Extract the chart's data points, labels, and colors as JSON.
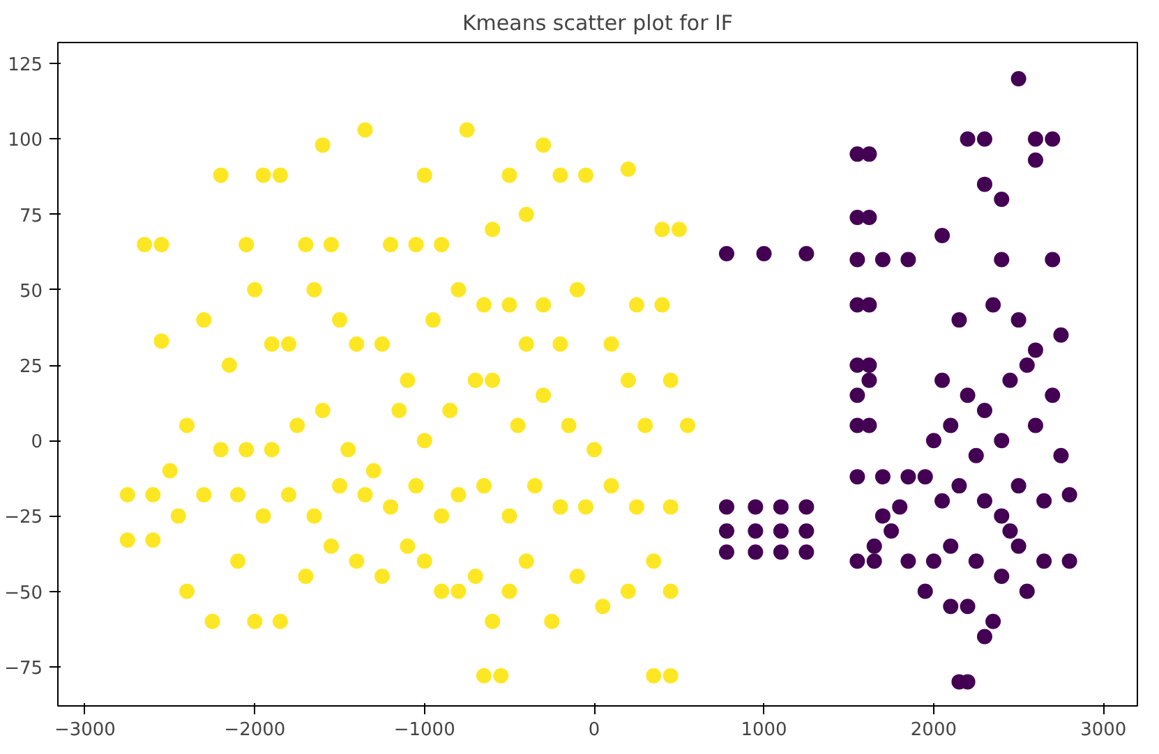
{
  "chart_data": {
    "type": "scatter",
    "title": "Kmeans scatter plot for IF",
    "marker": "circle",
    "grid": false,
    "xlim": [
      -3160,
      3200
    ],
    "ylim": [
      -88,
      132
    ],
    "xticks": [
      -3000,
      -2000,
      -1000,
      0,
      1000,
      2000,
      3000
    ],
    "yticks": [
      -75,
      -50,
      -25,
      0,
      25,
      50,
      75,
      100,
      125
    ],
    "series": [
      {
        "color": "#fde725",
        "x": [
          -2650,
          -2550,
          -2200,
          -1950,
          -1850,
          -2050,
          -1700,
          -1550,
          -1350,
          -1600,
          -1200,
          -1050,
          -900,
          -1000,
          -750,
          -500,
          -400,
          -600,
          -300,
          -200,
          -50,
          200,
          400,
          500,
          -2550,
          -2300,
          -2150,
          -2000,
          -1900,
          -1800,
          -1650,
          -1500,
          -1400,
          -1250,
          -1100,
          -950,
          -800,
          -650,
          -500,
          -400,
          -300,
          -200,
          -100,
          100,
          250,
          400,
          -2400,
          -2500,
          -2200,
          -2050,
          -1900,
          -1750,
          -1600,
          -1450,
          -1300,
          -1150,
          -1000,
          -850,
          -700,
          -600,
          -450,
          -300,
          -150,
          0,
          200,
          300,
          450,
          550,
          -2750,
          -2600,
          -2450,
          -2300,
          -2100,
          -1950,
          -1800,
          -1650,
          -1500,
          -1350,
          -1200,
          -1050,
          -900,
          -800,
          -650,
          -500,
          -350,
          -200,
          -50,
          100,
          250,
          450,
          -2750,
          -2600,
          -2400,
          -2250,
          -2100,
          -2000,
          -1850,
          -1700,
          -1550,
          -1400,
          -1250,
          -1100,
          -1000,
          -900,
          -800,
          -700,
          -600,
          -500,
          -400,
          -250,
          -100,
          50,
          200,
          350,
          450,
          -650,
          -550,
          350,
          450
        ],
        "values": [
          65,
          65,
          88,
          88,
          88,
          65,
          65,
          65,
          103,
          98,
          65,
          65,
          65,
          88,
          103,
          88,
          75,
          70,
          98,
          88,
          88,
          90,
          70,
          70,
          33,
          40,
          25,
          50,
          32,
          32,
          50,
          40,
          32,
          32,
          20,
          40,
          50,
          45,
          45,
          32,
          45,
          32,
          50,
          32,
          45,
          45,
          5,
          -10,
          -3,
          -3,
          -3,
          5,
          10,
          -3,
          -10,
          10,
          0,
          10,
          20,
          20,
          5,
          15,
          5,
          -3,
          20,
          5,
          20,
          5,
          -18,
          -18,
          -25,
          -18,
          -18,
          -25,
          -18,
          -25,
          -15,
          -18,
          -22,
          -15,
          -25,
          -18,
          -15,
          -25,
          -15,
          -22,
          -22,
          -15,
          -22,
          -22,
          -33,
          -33,
          -50,
          -60,
          -40,
          -60,
          -60,
          -45,
          -35,
          -40,
          -45,
          -35,
          -40,
          -50,
          -50,
          -45,
          -60,
          -50,
          -40,
          -60,
          -45,
          -55,
          -50,
          -40,
          -50,
          -78,
          -78,
          -78,
          -78
        ]
      },
      {
        "color": "#440154",
        "x": [
          780,
          1000,
          1250,
          780,
          780,
          780,
          950,
          950,
          950,
          1100,
          1100,
          1100,
          1250,
          1250,
          1250,
          1550,
          1620,
          1550,
          1620,
          1550,
          1700,
          1850,
          1550,
          1620,
          1550,
          1620,
          1550,
          1620,
          1550,
          1620,
          1550,
          1700,
          1850,
          1550,
          1650,
          1750,
          1800,
          1700,
          1650,
          1850,
          1950,
          2000,
          2100,
          2150,
          2200,
          2050,
          2200,
          2300,
          2600,
          2700,
          2500,
          2300,
          2400,
          2600,
          2400,
          2700,
          2150,
          2350,
          2500,
          2600,
          2750,
          2050,
          2200,
          2300,
          2450,
          2550,
          2700,
          2000,
          2100,
          2250,
          2400,
          2600,
          2750,
          1950,
          2050,
          2150,
          2300,
          2400,
          2500,
          2650,
          2800,
          2100,
          2250,
          2400,
          2500,
          2650,
          2800,
          2200,
          2350,
          2300,
          2450,
          2550
        ],
        "values": [
          62,
          62,
          62,
          -22,
          -30,
          -37,
          -22,
          -30,
          -37,
          -22,
          -30,
          -37,
          -22,
          -30,
          -37,
          95,
          95,
          74,
          74,
          60,
          60,
          60,
          45,
          45,
          25,
          20,
          15,
          25,
          5,
          5,
          -12,
          -12,
          -12,
          -40,
          -35,
          -30,
          -22,
          -25,
          -40,
          -40,
          -50,
          -40,
          -55,
          -80,
          -80,
          68,
          100,
          100,
          100,
          100,
          120,
          85,
          80,
          93,
          60,
          60,
          40,
          45,
          40,
          30,
          35,
          20,
          15,
          10,
          20,
          25,
          15,
          0,
          5,
          -5,
          0,
          5,
          -5,
          -12,
          -20,
          -15,
          -20,
          -25,
          -15,
          -20,
          -18,
          -35,
          -40,
          -45,
          -35,
          -40,
          -40,
          -55,
          -60,
          -65,
          -30,
          -50
        ]
      }
    ]
  }
}
